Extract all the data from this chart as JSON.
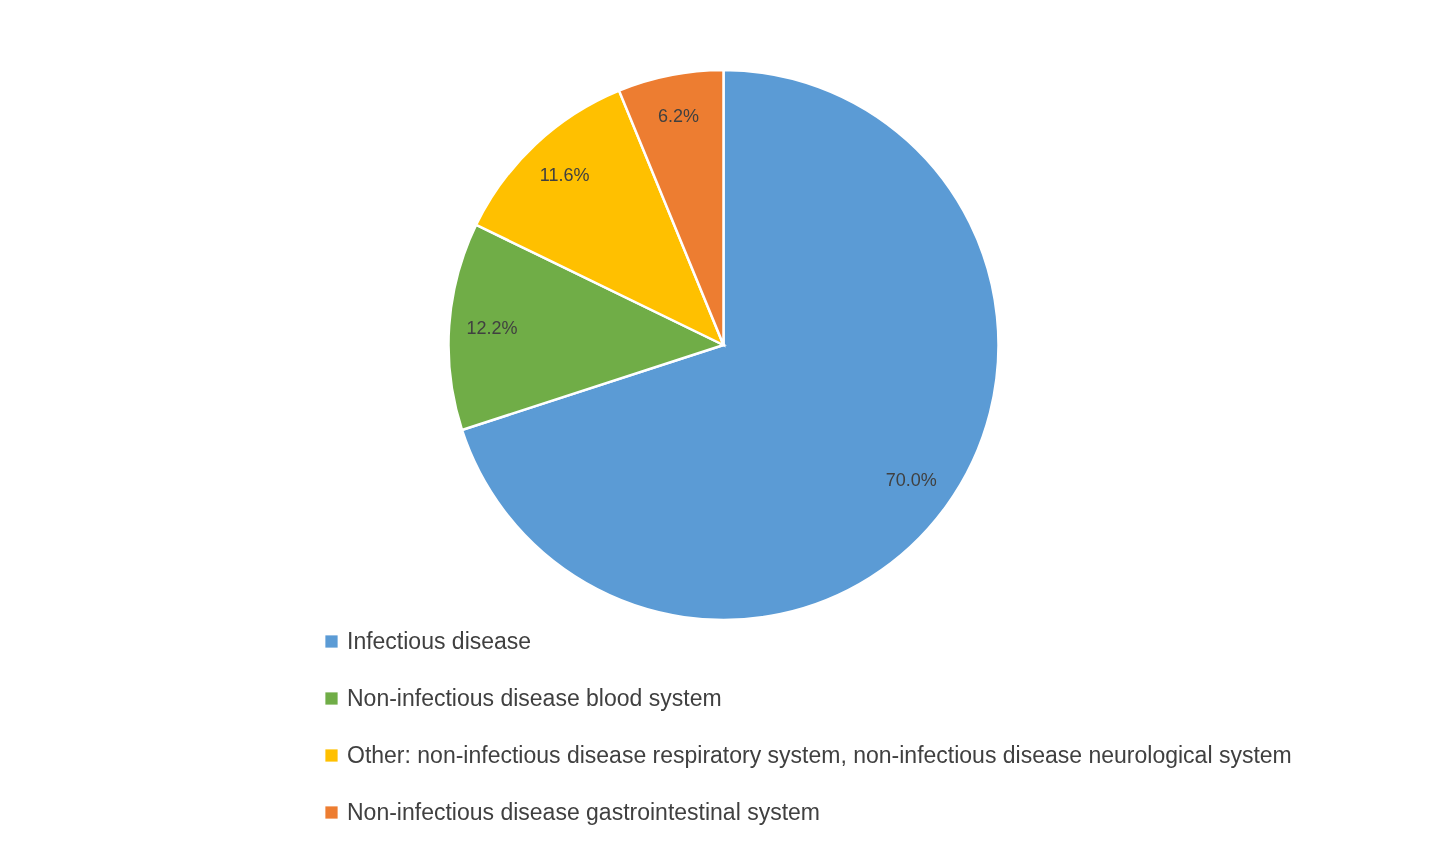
{
  "chart_data": {
    "type": "pie",
    "categories": [
      "Infectious disease",
      "Non-infectious disease blood system",
      "Other: non-infectious disease respiratory system, non-infectious disease neurological system",
      "Non-infectious disease gastrointestinal system"
    ],
    "values": [
      70.0,
      12.2,
      11.6,
      6.2
    ],
    "colors": [
      "#5b9bd5",
      "#70ad47",
      "#ffc000",
      "#ed7d31"
    ],
    "value_labels": [
      "70.0%",
      "12.2%",
      "11.6%",
      "6.2%"
    ],
    "legend": "bottom"
  }
}
